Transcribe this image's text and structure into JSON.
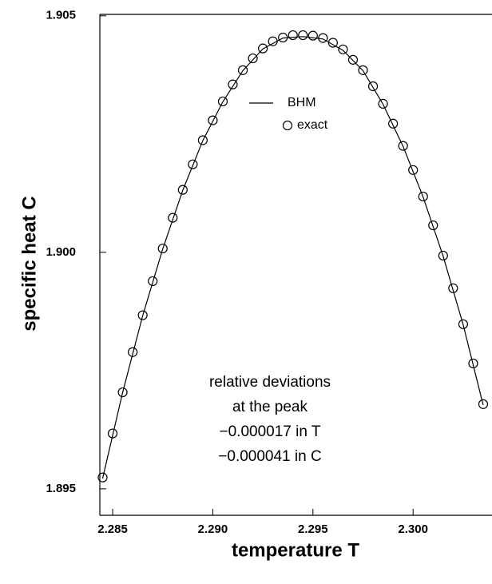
{
  "chart_data": {
    "type": "line",
    "xlabel": "temperature T",
    "ylabel": "specific heat C",
    "xlim": [
      2.28436,
      2.30394
    ],
    "ylim": [
      1.89444,
      1.90503
    ],
    "xticks": [
      2.285,
      {
        "value": 2.29,
        "label": "2.290"
      },
      2.295,
      {
        "value": 2.3,
        "label": "2.300"
      }
    ],
    "yticks": [
      1.895,
      {
        "value": 1.9,
        "label": "1.900"
      },
      1.905
    ],
    "annotation": [
      "relative deviations",
      "at the peak",
      "−0.000017 in T",
      "−0.000041 in C"
    ],
    "series": [
      {
        "name": "BHM",
        "color": "#000000",
        "style": "line",
        "x": [
          2.2845,
          2.2855,
          2.2865,
          2.2875,
          2.2885,
          2.2895,
          2.2905,
          2.2915,
          2.2925,
          2.2935,
          2.2945,
          2.2955,
          2.2965,
          2.2975,
          2.2985,
          2.2995,
          2.3005,
          2.3015,
          2.3025,
          2.3035
        ],
        "values": [
          1.89522,
          1.89704,
          1.89866,
          1.90007,
          1.90131,
          1.90236,
          1.90318,
          1.90384,
          1.9043,
          1.90453,
          1.90456,
          1.90451,
          1.90427,
          1.90384,
          1.90313,
          1.90224,
          1.90117,
          1.89992,
          1.89847,
          1.89677
        ]
      },
      {
        "name": "exact",
        "color": "#000000",
        "style": "circle",
        "x": [
          2.2845,
          2.285,
          2.2855,
          2.286,
          2.2865,
          2.287,
          2.2875,
          2.288,
          2.2885,
          2.289,
          2.2895,
          2.29,
          2.2905,
          2.291,
          2.2915,
          2.292,
          2.2925,
          2.293,
          2.2935,
          2.294,
          2.2945,
          2.295,
          2.2955,
          2.296,
          2.2965,
          2.297,
          2.2975,
          2.298,
          2.2985,
          2.299,
          2.2995,
          2.3,
          2.3005,
          2.301,
          2.3015,
          2.302,
          2.3025,
          2.303,
          2.3035
        ],
        "values": [
          1.89524,
          1.89617,
          1.89704,
          1.89789,
          1.89867,
          1.89939,
          1.90008,
          1.90073,
          1.90132,
          1.90186,
          1.90237,
          1.90279,
          1.90319,
          1.90355,
          1.90385,
          1.9041,
          1.90431,
          1.90446,
          1.90454,
          1.90459,
          1.90459,
          1.90458,
          1.90453,
          1.90443,
          1.90429,
          1.90407,
          1.90385,
          1.90351,
          1.90314,
          1.90272,
          1.90225,
          1.90174,
          1.90118,
          1.90057,
          1.89993,
          1.89924,
          1.89848,
          1.89765,
          1.89679
        ]
      }
    ]
  }
}
